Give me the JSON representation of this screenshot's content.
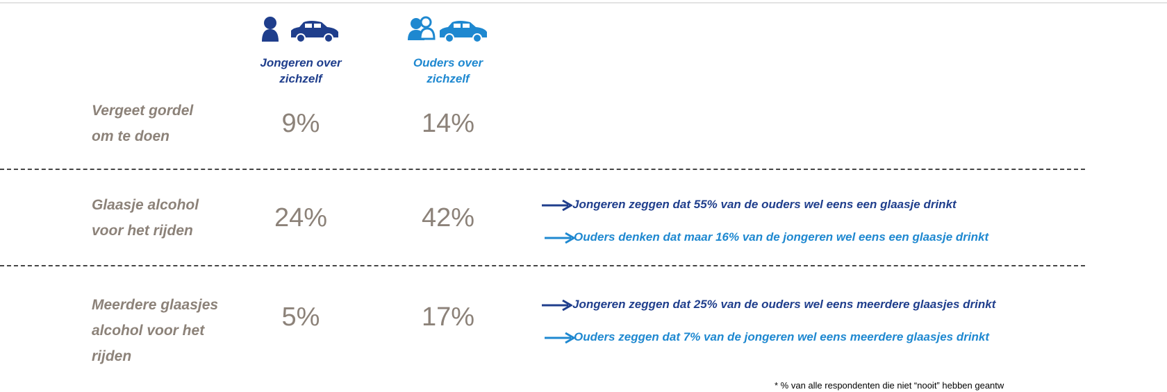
{
  "columns": [
    {
      "lines": [
        "Jongeren over",
        "zichzelf"
      ],
      "color": "#1f3e8c"
    },
    {
      "lines": [
        "Ouders over",
        "zichzelf"
      ],
      "color": "#1e88d0"
    }
  ],
  "rows": [
    {
      "lines": [
        "Vergeet gordel",
        "om te doen"
      ],
      "values": [
        "9%",
        "14%"
      ],
      "notes": []
    },
    {
      "lines": [
        "Glaasje alcohol",
        "voor het rijden"
      ],
      "values": [
        "24%",
        "42%"
      ],
      "notes": [
        "Jongeren zeggen dat 55% van de ouders wel eens een glaasje drinkt",
        "Ouders denken dat  maar 16% van de jongeren wel eens een glaasje drinkt"
      ]
    },
    {
      "lines": [
        "Meerdere glaasjes",
        "alcohol voor het",
        "rijden"
      ],
      "values": [
        "5%",
        "17%"
      ],
      "notes": [
        "Jongeren zeggen dat 25% van de ouders wel eens meerdere glaasjes drinkt",
        "Ouders zeggen dat 7% van de jongeren wel eens meerdere glaasjes drinkt"
      ]
    }
  ],
  "footnote": "* % van alle respondenten die niet “nooit” hebben geantw"
}
